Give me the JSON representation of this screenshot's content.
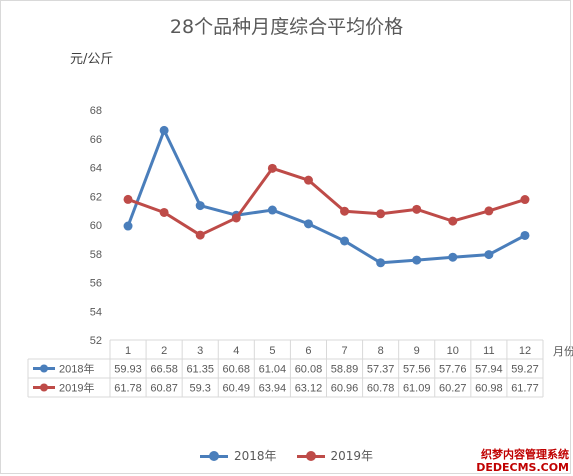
{
  "chart_data": {
    "type": "line",
    "title": "28个品种月度综合平均价格",
    "ylabel": "元/公斤",
    "xlabel": "月份",
    "ylim": [
      52,
      68
    ],
    "yticks": [
      52,
      54,
      56,
      58,
      60,
      62,
      64,
      66,
      68
    ],
    "categories": [
      "1",
      "2",
      "3",
      "4",
      "5",
      "6",
      "7",
      "8",
      "9",
      "10",
      "11",
      "12"
    ],
    "series": [
      {
        "name": "2018年",
        "color": "#4a7ebb",
        "values": [
          59.93,
          66.58,
          61.35,
          60.68,
          61.04,
          60.08,
          58.89,
          57.37,
          57.56,
          57.76,
          57.94,
          59.27
        ],
        "display": [
          "59.93",
          "66.58",
          "61.35",
          "60.68",
          "61.04",
          "60.08",
          "58.89",
          "57.37",
          "57.56",
          "57.76",
          "57.94",
          "59.27"
        ]
      },
      {
        "name": "2019年",
        "color": "#be4b48",
        "values": [
          61.78,
          60.87,
          59.3,
          60.49,
          63.94,
          63.12,
          60.96,
          60.78,
          61.09,
          60.27,
          60.98,
          61.77
        ],
        "display": [
          "61.78",
          "60.87",
          "59.3",
          "60.49",
          "63.94",
          "63.12",
          "60.96",
          "60.78",
          "61.09",
          "60.27",
          "60.98",
          "61.77"
        ]
      }
    ],
    "grid": false,
    "legend": "bottom",
    "data_table": true
  },
  "watermark": {
    "line1": "织梦内容管理系统",
    "line2": "DEDECMS.COM"
  }
}
